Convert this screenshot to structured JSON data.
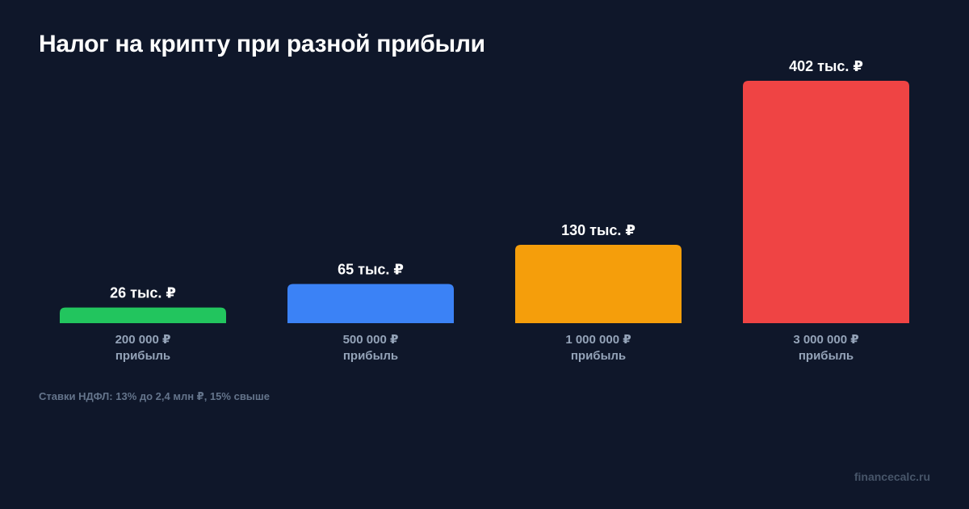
{
  "chart_data": {
    "type": "bar",
    "title": "Налог на крипту при разной прибыли",
    "categories": [
      "200 000 ₽",
      "500 000 ₽",
      "1 000 000 ₽",
      "3 000 000 ₽"
    ],
    "category_sublabel": "прибыль",
    "values": [
      26,
      65,
      130,
      402
    ],
    "value_labels": [
      "26 тыс. ₽",
      "65 тыс. ₽",
      "130 тыс. ₽",
      "402 тыс. ₽"
    ],
    "colors": [
      "#22c55e",
      "#3b82f6",
      "#f59e0b",
      "#ef4444"
    ],
    "ylim": [
      0,
      402
    ],
    "grid": false,
    "legend": "none",
    "note": "Ставки НДФЛ: 13% до 2,4 млн ₽, 15% свыше"
  },
  "brand": "financecalc.ru"
}
